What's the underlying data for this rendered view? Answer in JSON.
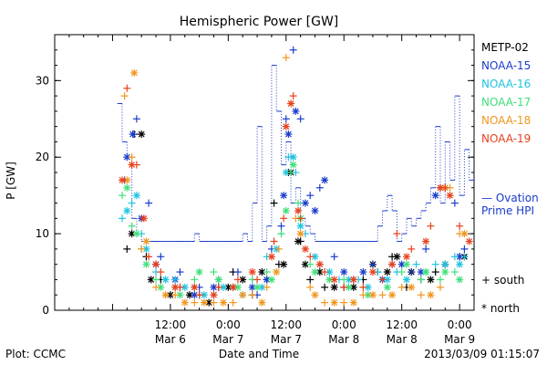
{
  "chart_data": {
    "type": "scatter",
    "title": "Hemispheric Power [GW]",
    "xlabel": "Date and Time",
    "ylabel": "P [GW]",
    "xlim": [
      0,
      87
    ],
    "ylim": [
      0,
      36
    ],
    "x_unit": "hours since 2013/03/05 12:00",
    "x_ticks": [
      {
        "t": 24,
        "line1": "12:00",
        "line2": "Mar 6"
      },
      {
        "t": 36,
        "line1": "0:00",
        "line2": "Mar 7"
      },
      {
        "t": 48,
        "line1": "12:00",
        "line2": "Mar 7"
      },
      {
        "t": 60,
        "line1": "0:00",
        "line2": "Mar 8"
      },
      {
        "t": 72,
        "line1": "12:00",
        "line2": "Mar 8"
      },
      {
        "t": 84,
        "line1": "0:00",
        "line2": "Mar 9"
      }
    ],
    "y_ticks": [
      0,
      10,
      20,
      30
    ],
    "legend": {
      "position": "right",
      "satellites": [
        {
          "name": "METP-02",
          "color": "#000000"
        },
        {
          "name": "NOAA-15",
          "color": "#1a3ccc"
        },
        {
          "name": "NOAA-16",
          "color": "#1fc4e0"
        },
        {
          "name": "NOAA-17",
          "color": "#3fe07a"
        },
        {
          "name": "NOAA-18",
          "color": "#f0961e"
        },
        {
          "name": "NOAA-19",
          "color": "#e8401c"
        }
      ],
      "model": {
        "line1": "— Ovation",
        "line2": "Prime HPI",
        "color": "#1a3ccc"
      },
      "markers": {
        "south": "+ south",
        "north": "* north"
      }
    },
    "ovation_prime_hpi": {
      "color": "#1a3ccc",
      "x": [
        13,
        14,
        15,
        16,
        17,
        18,
        19,
        20,
        21,
        22,
        23,
        24,
        25,
        26,
        27,
        28,
        29,
        30,
        31,
        32,
        33,
        34,
        35,
        36,
        37,
        38,
        39,
        40,
        41,
        42,
        43,
        44,
        45,
        46,
        47,
        48,
        49,
        50,
        51,
        52,
        53,
        54,
        55,
        56,
        57,
        58,
        59,
        60,
        61,
        62,
        63,
        64,
        65,
        66,
        67,
        68,
        69,
        70,
        71,
        72,
        73,
        74,
        75,
        76,
        77,
        78,
        79,
        80,
        81,
        82,
        83,
        84,
        85,
        86
      ],
      "y": [
        27,
        22,
        20,
        12,
        10,
        9,
        9,
        9,
        9,
        9,
        9,
        9,
        9,
        9,
        9,
        9,
        10,
        9,
        9,
        9,
        9,
        9,
        9,
        9,
        9,
        9,
        10,
        9,
        14,
        24,
        9,
        11,
        32,
        26,
        19,
        22,
        14,
        16,
        12,
        11,
        10,
        9,
        9,
        9,
        9,
        9,
        9,
        9,
        9,
        9,
        9,
        9,
        9,
        9,
        11,
        13,
        15,
        13,
        9,
        10,
        12,
        11,
        12,
        13,
        14,
        16,
        24,
        14,
        22,
        17,
        28,
        15,
        21,
        17
      ]
    },
    "series": [
      {
        "name": "METP-02",
        "color": "#000000",
        "south": [
          [
            15,
            8
          ],
          [
            16.5,
            23
          ],
          [
            19,
            7
          ],
          [
            22,
            4
          ],
          [
            26,
            3
          ],
          [
            30,
            2
          ],
          [
            34,
            3
          ],
          [
            37,
            5
          ],
          [
            41,
            2
          ],
          [
            44,
            4
          ],
          [
            45.5,
            14
          ],
          [
            46.5,
            6
          ],
          [
            48.5,
            18
          ],
          [
            51,
            9
          ],
          [
            53,
            4
          ],
          [
            56,
            3
          ],
          [
            60,
            3
          ],
          [
            64,
            4
          ],
          [
            67,
            5
          ],
          [
            70,
            7
          ],
          [
            73,
            3
          ],
          [
            76,
            4
          ],
          [
            79,
            5
          ],
          [
            84,
            7
          ]
        ],
        "north": [
          [
            16,
            10
          ],
          [
            18,
            23
          ],
          [
            20,
            4
          ],
          [
            24,
            2
          ],
          [
            28,
            2
          ],
          [
            32,
            1
          ],
          [
            36,
            3
          ],
          [
            39,
            4
          ],
          [
            43,
            5
          ],
          [
            47.5,
            6
          ],
          [
            49,
            18
          ],
          [
            50.5,
            9
          ],
          [
            52,
            6
          ],
          [
            55,
            5
          ],
          [
            58,
            3
          ],
          [
            62,
            3
          ],
          [
            66,
            6
          ],
          [
            69,
            5
          ],
          [
            71,
            7
          ],
          [
            74,
            5
          ],
          [
            78,
            4
          ],
          [
            81,
            6
          ],
          [
            85,
            7
          ]
        ]
      },
      {
        "name": "NOAA-15",
        "color": "#1a3ccc",
        "south": [
          [
            14.5,
            17
          ],
          [
            17,
            25
          ],
          [
            19.5,
            14
          ],
          [
            22,
            7
          ],
          [
            26,
            5
          ],
          [
            30,
            3
          ],
          [
            34,
            4
          ],
          [
            38,
            5
          ],
          [
            42,
            2
          ],
          [
            45,
            8
          ],
          [
            47,
            11
          ],
          [
            48,
            25
          ],
          [
            49.5,
            34
          ],
          [
            51,
            25
          ],
          [
            53,
            15
          ],
          [
            55,
            16
          ],
          [
            58,
            7
          ],
          [
            62,
            4
          ],
          [
            66,
            6
          ],
          [
            70,
            6
          ],
          [
            74,
            5
          ],
          [
            77,
            8
          ],
          [
            80,
            16
          ],
          [
            83,
            14
          ],
          [
            85,
            8
          ]
        ],
        "north": [
          [
            15,
            20
          ],
          [
            16.2,
            23
          ],
          [
            18,
            12
          ],
          [
            21,
            6
          ],
          [
            25,
            4
          ],
          [
            29,
            2
          ],
          [
            33,
            3
          ],
          [
            37,
            3
          ],
          [
            41,
            3
          ],
          [
            44,
            4
          ],
          [
            47.5,
            15
          ],
          [
            48.5,
            23
          ],
          [
            50,
            26
          ],
          [
            52,
            14
          ],
          [
            54,
            13
          ],
          [
            56,
            17
          ],
          [
            60,
            5
          ],
          [
            64,
            5
          ],
          [
            68,
            4
          ],
          [
            72,
            6
          ],
          [
            76,
            5
          ],
          [
            79,
            15
          ],
          [
            81,
            16
          ],
          [
            84,
            7
          ]
        ]
      },
      {
        "name": "NOAA-16",
        "color": "#1fc4e0",
        "south": [
          [
            14,
            12
          ],
          [
            16,
            14
          ],
          [
            18,
            10
          ],
          [
            21,
            5
          ],
          [
            25,
            4
          ],
          [
            29,
            3
          ],
          [
            33,
            2
          ],
          [
            37,
            3
          ],
          [
            41,
            4
          ],
          [
            44,
            7
          ],
          [
            47,
            10
          ],
          [
            48.5,
            20
          ],
          [
            50,
            18
          ],
          [
            52,
            10
          ],
          [
            55,
            6
          ],
          [
            59,
            4
          ],
          [
            63,
            4
          ],
          [
            67,
            5
          ],
          [
            71,
            5
          ],
          [
            75,
            6
          ],
          [
            79,
            6
          ],
          [
            83,
            7
          ],
          [
            85,
            7
          ]
        ],
        "north": [
          [
            15,
            13
          ],
          [
            17,
            15
          ],
          [
            19,
            8
          ],
          [
            23,
            4
          ],
          [
            27,
            3
          ],
          [
            31,
            2
          ],
          [
            35,
            3
          ],
          [
            39,
            2
          ],
          [
            43,
            3
          ],
          [
            46,
            8
          ],
          [
            48,
            18
          ],
          [
            49.5,
            20
          ],
          [
            51,
            11
          ],
          [
            54,
            7
          ],
          [
            57,
            5
          ],
          [
            61,
            4
          ],
          [
            65,
            3
          ],
          [
            69,
            4
          ],
          [
            73,
            4
          ],
          [
            77,
            5
          ],
          [
            81,
            6
          ],
          [
            84,
            6
          ]
        ]
      },
      {
        "name": "NOAA-17",
        "color": "#3fe07a",
        "south": [
          [
            14,
            15
          ],
          [
            16,
            11
          ],
          [
            18,
            8
          ],
          [
            21,
            4
          ],
          [
            25,
            3
          ],
          [
            29,
            4
          ],
          [
            33,
            5
          ],
          [
            37,
            3
          ],
          [
            41,
            4
          ],
          [
            44,
            5
          ],
          [
            47,
            10
          ],
          [
            49,
            18
          ],
          [
            50.5,
            14
          ],
          [
            53,
            6
          ],
          [
            56,
            5
          ],
          [
            60,
            4
          ],
          [
            64,
            3
          ],
          [
            68,
            4
          ],
          [
            72,
            5
          ],
          [
            76,
            4
          ],
          [
            80,
            4
          ],
          [
            83,
            5
          ]
        ],
        "north": [
          [
            15,
            16
          ],
          [
            17,
            10
          ],
          [
            19,
            6
          ],
          [
            22,
            3
          ],
          [
            26,
            2
          ],
          [
            30,
            5
          ],
          [
            34,
            4
          ],
          [
            38,
            3
          ],
          [
            42,
            3
          ],
          [
            45,
            4
          ],
          [
            48,
            13
          ],
          [
            49.5,
            19
          ],
          [
            51,
            12
          ],
          [
            54,
            5
          ],
          [
            57,
            4
          ],
          [
            61,
            3
          ],
          [
            65,
            2
          ],
          [
            69,
            3
          ],
          [
            73,
            6
          ],
          [
            77,
            5
          ],
          [
            81,
            5
          ],
          [
            84,
            4
          ]
        ]
      },
      {
        "name": "NOAA-18",
        "color": "#f0961e",
        "south": [
          [
            14.5,
            28
          ],
          [
            16,
            20
          ],
          [
            18,
            8
          ],
          [
            21,
            3
          ],
          [
            25,
            2
          ],
          [
            29,
            1
          ],
          [
            33,
            1
          ],
          [
            37,
            1
          ],
          [
            41,
            2
          ],
          [
            44,
            3
          ],
          [
            46.5,
            8
          ],
          [
            48,
            33
          ],
          [
            50,
            12
          ],
          [
            53,
            3
          ],
          [
            56,
            1
          ],
          [
            60,
            1
          ],
          [
            64,
            2
          ],
          [
            68,
            2
          ],
          [
            72,
            3
          ],
          [
            76,
            2
          ],
          [
            80,
            3
          ],
          [
            82,
            16
          ],
          [
            84,
            10
          ]
        ],
        "north": [
          [
            15,
            17
          ],
          [
            16.5,
            31
          ],
          [
            19,
            9
          ],
          [
            23,
            2
          ],
          [
            27,
            1
          ],
          [
            31,
            1
          ],
          [
            35,
            1
          ],
          [
            39,
            2
          ],
          [
            43,
            1
          ],
          [
            46,
            5
          ],
          [
            49,
            27
          ],
          [
            51,
            10
          ],
          [
            54,
            2
          ],
          [
            58,
            1
          ],
          [
            62,
            1
          ],
          [
            66,
            2
          ],
          [
            70,
            2
          ],
          [
            74,
            3
          ],
          [
            78,
            2
          ],
          [
            81,
            16
          ],
          [
            85,
            10
          ]
        ]
      },
      {
        "name": "NOAA-19",
        "color": "#e8401c",
        "south": [
          [
            15,
            29
          ],
          [
            17,
            19
          ],
          [
            19.5,
            7
          ],
          [
            22,
            5
          ],
          [
            26,
            3
          ],
          [
            30,
            2
          ],
          [
            34,
            3
          ],
          [
            38,
            4
          ],
          [
            42,
            4
          ],
          [
            45.5,
            9
          ],
          [
            47.5,
            12
          ],
          [
            49.5,
            28
          ],
          [
            51,
            12
          ],
          [
            53,
            7
          ],
          [
            56,
            5
          ],
          [
            60,
            3
          ],
          [
            64,
            3
          ],
          [
            68,
            4
          ],
          [
            71,
            10
          ],
          [
            74,
            8
          ],
          [
            78,
            11
          ],
          [
            81,
            16
          ],
          [
            84,
            11
          ]
        ],
        "north": [
          [
            14,
            17
          ],
          [
            16,
            19
          ],
          [
            18.5,
            12
          ],
          [
            21,
            6
          ],
          [
            25,
            3
          ],
          [
            29,
            3
          ],
          [
            33,
            2
          ],
          [
            37,
            3
          ],
          [
            41,
            5
          ],
          [
            45,
            7
          ],
          [
            48,
            24
          ],
          [
            49,
            27
          ],
          [
            50.5,
            13
          ],
          [
            52,
            8
          ],
          [
            55,
            6
          ],
          [
            58,
            4
          ],
          [
            62,
            4
          ],
          [
            66,
            5
          ],
          [
            70,
            6
          ],
          [
            73,
            7
          ],
          [
            77,
            9
          ],
          [
            80,
            16
          ],
          [
            82,
            15
          ],
          [
            86,
            9
          ]
        ]
      }
    ]
  },
  "footer": {
    "plot_credit": "Plot: CCMC",
    "timestamp": "2013/03/09 01:15:07"
  }
}
